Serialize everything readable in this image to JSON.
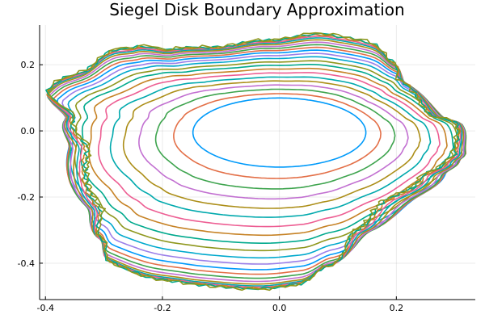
{
  "chart_data": {
    "type": "line",
    "title": "Siegel Disk Boundary Approximation",
    "xlabel": "",
    "ylabel": "",
    "xlim": [
      -0.41,
      0.335
    ],
    "ylim": [
      -0.51,
      0.32
    ],
    "x_ticks": [
      -0.4,
      -0.2,
      0.0,
      0.2
    ],
    "x_tick_labels": [
      "-0.4",
      "-0.2",
      "0.0",
      "0.2"
    ],
    "y_ticks": [
      -0.4,
      -0.2,
      0.0,
      0.2
    ],
    "y_tick_labels": [
      "-0.4",
      "-0.2",
      "0.0",
      "0.2"
    ],
    "grid": true,
    "legend": "none",
    "palette": [
      "#009AFA",
      "#E36F47",
      "#3EA44E",
      "#C270D1",
      "#AC8E18",
      "#00A9AD",
      "#ED5E93",
      "#C68225",
      "#00A98D",
      "#8E971D",
      "#00A9CD",
      "#9B7FE9"
    ],
    "boundary_points": [
      [
        0.085,
        0.293
      ],
      [
        0.155,
        0.268
      ],
      [
        0.195,
        0.208
      ],
      [
        0.205,
        0.155
      ],
      [
        0.255,
        0.05
      ],
      [
        0.3,
        0.025
      ],
      [
        0.298,
        -0.07
      ],
      [
        0.28,
        -0.095
      ],
      [
        0.24,
        -0.14
      ],
      [
        0.17,
        -0.22
      ],
      [
        0.13,
        -0.3
      ],
      [
        0.08,
        -0.41
      ],
      [
        0.03,
        -0.465
      ],
      [
        -0.03,
        -0.478
      ],
      [
        -0.11,
        -0.47
      ],
      [
        -0.16,
        -0.46
      ],
      [
        -0.23,
        -0.44
      ],
      [
        -0.29,
        -0.395
      ],
      [
        -0.3,
        -0.33
      ],
      [
        -0.305,
        -0.23
      ],
      [
        -0.325,
        -0.06
      ],
      [
        -0.35,
        0.04
      ],
      [
        -0.395,
        0.125
      ],
      [
        -0.38,
        0.15
      ],
      [
        -0.33,
        0.185
      ],
      [
        -0.285,
        0.245
      ],
      [
        -0.245,
        0.255
      ],
      [
        -0.18,
        0.248
      ],
      [
        -0.1,
        0.255
      ],
      [
        -0.02,
        0.275
      ]
    ],
    "orbits": [
      {
        "cx": 0.0,
        "cy": -0.005,
        "rx": 0.112,
        "ry": 0.11,
        "mix": 0.0
      },
      {
        "cx": -0.003,
        "cy": -0.012,
        "rx": 0.13,
        "ry": 0.124,
        "mix": 0.04
      },
      {
        "cx": -0.006,
        "cy": -0.018,
        "rx": 0.148,
        "ry": 0.138,
        "mix": 0.08
      },
      {
        "cx": -0.009,
        "cy": -0.024,
        "rx": 0.166,
        "ry": 0.152,
        "mix": 0.12
      },
      {
        "cx": -0.012,
        "cy": -0.03,
        "rx": 0.184,
        "ry": 0.166,
        "mix": 0.16
      },
      {
        "cx": -0.015,
        "cy": -0.036,
        "rx": 0.2,
        "ry": 0.18,
        "mix": 0.2
      },
      {
        "cx": -0.018,
        "cy": -0.042,
        "rx": 0.216,
        "ry": 0.194,
        "mix": 0.25
      },
      {
        "cx": -0.021,
        "cy": -0.048,
        "rx": 0.23,
        "ry": 0.208,
        "mix": 0.3
      },
      {
        "cx": -0.024,
        "cy": -0.054,
        "rx": 0.244,
        "ry": 0.222,
        "mix": 0.35
      },
      {
        "cx": -0.026,
        "cy": -0.06,
        "rx": 0.256,
        "ry": 0.236,
        "mix": 0.4
      },
      {
        "cx": -0.028,
        "cy": -0.066,
        "rx": 0.268,
        "ry": 0.25,
        "mix": 0.46
      },
      {
        "cx": -0.03,
        "cy": -0.072,
        "rx": 0.278,
        "ry": 0.262,
        "mix": 0.52
      },
      {
        "cx": -0.032,
        "cy": -0.078,
        "rx": 0.288,
        "ry": 0.274,
        "mix": 0.58
      },
      {
        "cx": -0.034,
        "cy": -0.084,
        "rx": 0.296,
        "ry": 0.284,
        "mix": 0.64
      },
      {
        "cx": -0.036,
        "cy": -0.09,
        "rx": 0.304,
        "ry": 0.294,
        "mix": 0.7
      },
      {
        "cx": -0.038,
        "cy": -0.095,
        "rx": 0.31,
        "ry": 0.302,
        "mix": 0.76
      },
      {
        "cx": -0.04,
        "cy": -0.1,
        "rx": 0.316,
        "ry": 0.31,
        "mix": 0.82
      },
      {
        "cx": -0.042,
        "cy": -0.104,
        "rx": 0.32,
        "ry": 0.316,
        "mix": 0.87
      },
      {
        "cx": -0.044,
        "cy": -0.108,
        "rx": 0.324,
        "ry": 0.322,
        "mix": 0.91
      },
      {
        "cx": -0.046,
        "cy": -0.11,
        "rx": 0.326,
        "ry": 0.326,
        "mix": 0.95
      },
      {
        "cx": -0.047,
        "cy": -0.112,
        "rx": 0.328,
        "ry": 0.328,
        "mix": 0.98
      },
      {
        "cx": -0.048,
        "cy": -0.113,
        "rx": 0.33,
        "ry": 0.33,
        "mix": 1.0
      }
    ]
  }
}
